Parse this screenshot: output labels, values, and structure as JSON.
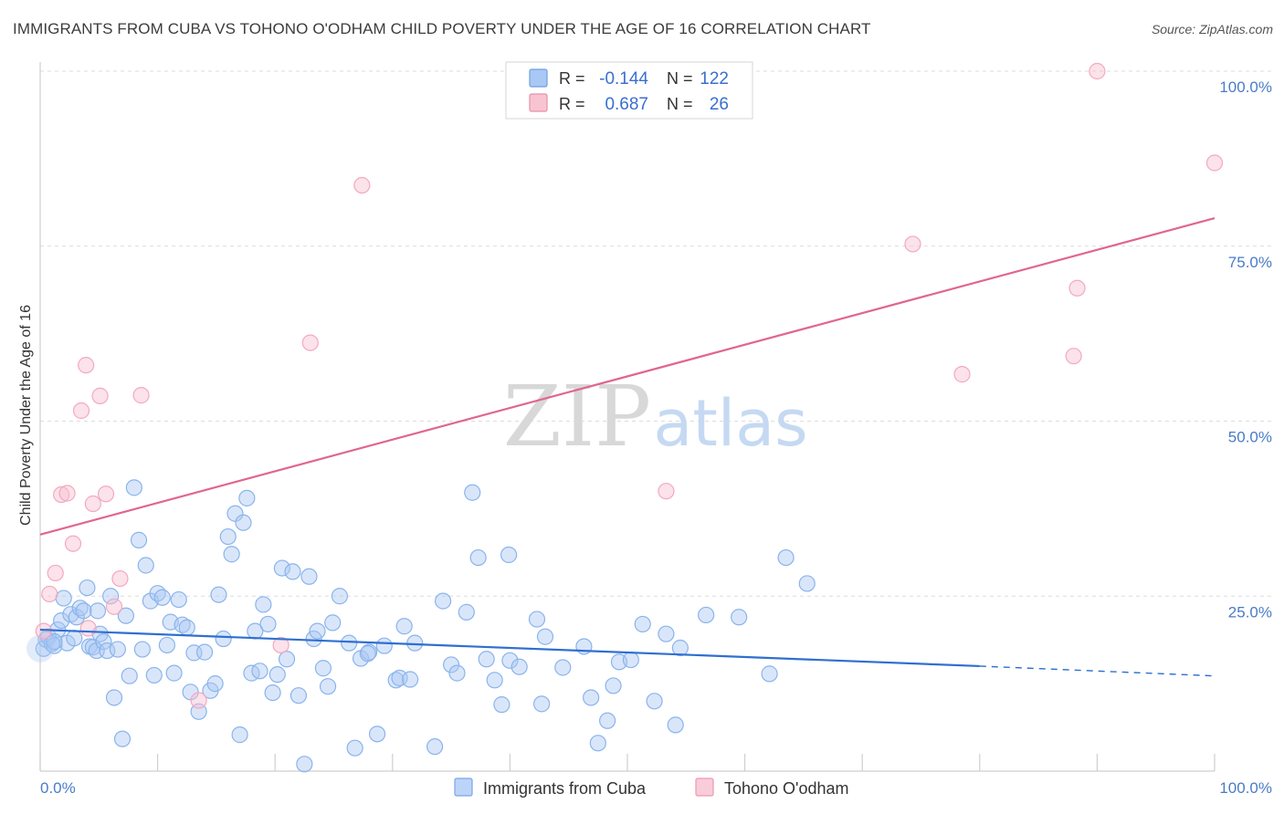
{
  "title": "IMMIGRANTS FROM CUBA VS TOHONO O'ODHAM CHILD POVERTY UNDER THE AGE OF 16 CORRELATION CHART",
  "source": "Source: ZipAtlas.com",
  "watermark": {
    "zip": "ZIP",
    "atlas": "atlas"
  },
  "legend_box": [
    {
      "r_label": "R =",
      "r_value": "-0.144",
      "n_label": "N =",
      "n_value": "122",
      "color": "#a9c8f5",
      "stroke": "#6f9fe0"
    },
    {
      "r_label": "R =",
      "r_value": "0.687",
      "n_label": "N =",
      "n_value": "26",
      "color": "#f8c4d2",
      "stroke": "#e890ab"
    }
  ],
  "bottom_legend": [
    {
      "label": "Immigrants from Cuba",
      "color": "#bcd4f7",
      "stroke": "#7aa6e6"
    },
    {
      "label": "Tohono O'odham",
      "color": "#f9ccd9",
      "stroke": "#ec9ab3"
    }
  ],
  "chart_data": {
    "type": "scatter",
    "title": "IMMIGRANTS FROM CUBA VS TOHONO O'ODHAM CHILD POVERTY UNDER THE AGE OF 16 CORRELATION CHART",
    "xlabel": "",
    "ylabel": "Child Poverty Under the Age of 16",
    "xlim": [
      0,
      100
    ],
    "ylim": [
      0,
      100
    ],
    "x_tick_labels": [
      "0.0%",
      "100.0%"
    ],
    "y_tick_labels": [
      "25.0%",
      "50.0%",
      "75.0%",
      "100.0%"
    ],
    "y_ticks": [
      25,
      50,
      75,
      100
    ],
    "grid": true,
    "series": [
      {
        "name": "Immigrants from Cuba",
        "color": "#8ab4ec",
        "trend": {
          "x0": 0,
          "y0": 20.2,
          "x1": 80,
          "y1": 15.0,
          "dash_to_x": 100,
          "dash_to_y": 13.6,
          "color": "#2f6fd0"
        },
        "points": [
          [
            0.3,
            17.5
          ],
          [
            0.5,
            18.8
          ],
          [
            0.7,
            19.2
          ],
          [
            1.0,
            18.2
          ],
          [
            1.2,
            17.9
          ],
          [
            1.5,
            20.2
          ],
          [
            1.8,
            21.5
          ],
          [
            2.0,
            24.7
          ],
          [
            2.3,
            18.3
          ],
          [
            2.6,
            22.4
          ],
          [
            2.9,
            19.0
          ],
          [
            3.1,
            22.0
          ],
          [
            3.4,
            23.3
          ],
          [
            3.7,
            22.9
          ],
          [
            4.0,
            26.2
          ],
          [
            4.2,
            17.8
          ],
          [
            4.5,
            17.7
          ],
          [
            4.8,
            17.2
          ],
          [
            5.1,
            19.6
          ],
          [
            5.4,
            18.5
          ],
          [
            5.7,
            17.2
          ],
          [
            6.0,
            25.0
          ],
          [
            6.3,
            10.5
          ],
          [
            6.6,
            17.4
          ],
          [
            7.0,
            4.6
          ],
          [
            7.3,
            22.2
          ],
          [
            7.6,
            13.6
          ],
          [
            8.0,
            40.5
          ],
          [
            8.4,
            33.0
          ],
          [
            8.7,
            17.4
          ],
          [
            9.0,
            29.4
          ],
          [
            9.4,
            24.3
          ],
          [
            9.7,
            13.7
          ],
          [
            10.0,
            25.4
          ],
          [
            10.4,
            24.8
          ],
          [
            10.8,
            18.0
          ],
          [
            11.1,
            21.3
          ],
          [
            11.4,
            14.0
          ],
          [
            11.8,
            24.5
          ],
          [
            12.1,
            20.9
          ],
          [
            12.5,
            20.5
          ],
          [
            12.8,
            11.3
          ],
          [
            13.1,
            16.9
          ],
          [
            13.5,
            8.5
          ],
          [
            14.0,
            17.0
          ],
          [
            14.5,
            11.5
          ],
          [
            14.9,
            12.5
          ],
          [
            15.2,
            25.2
          ],
          [
            15.6,
            18.9
          ],
          [
            16.0,
            33.5
          ],
          [
            16.3,
            31.0
          ],
          [
            16.6,
            36.8
          ],
          [
            17.0,
            5.2
          ],
          [
            17.3,
            35.5
          ],
          [
            17.6,
            39.0
          ],
          [
            18.0,
            14.0
          ],
          [
            18.3,
            20.0
          ],
          [
            18.7,
            14.3
          ],
          [
            19.0,
            23.8
          ],
          [
            19.4,
            21.0
          ],
          [
            19.8,
            11.2
          ],
          [
            20.2,
            13.8
          ],
          [
            20.6,
            29.0
          ],
          [
            21.0,
            16.0
          ],
          [
            21.5,
            28.5
          ],
          [
            22.0,
            10.8
          ],
          [
            22.5,
            1.0
          ],
          [
            22.9,
            27.8
          ],
          [
            23.3,
            18.9
          ],
          [
            23.6,
            20.0
          ],
          [
            24.1,
            14.7
          ],
          [
            24.5,
            12.1
          ],
          [
            24.9,
            21.2
          ],
          [
            25.5,
            25.0
          ],
          [
            26.3,
            18.3
          ],
          [
            26.8,
            3.3
          ],
          [
            27.3,
            16.1
          ],
          [
            28.0,
            17.0
          ],
          [
            28.7,
            5.3
          ],
          [
            29.3,
            17.9
          ],
          [
            30.3,
            13.0
          ],
          [
            30.6,
            13.3
          ],
          [
            31.0,
            20.7
          ],
          [
            31.5,
            13.1
          ],
          [
            31.9,
            18.3
          ],
          [
            33.6,
            3.5
          ],
          [
            34.3,
            24.3
          ],
          [
            35.0,
            15.2
          ],
          [
            35.5,
            14.0
          ],
          [
            36.3,
            22.7
          ],
          [
            36.8,
            39.8
          ],
          [
            37.3,
            30.5
          ],
          [
            38.0,
            16.0
          ],
          [
            38.7,
            13.0
          ],
          [
            39.3,
            9.5
          ],
          [
            39.9,
            30.9
          ],
          [
            40.0,
            15.8
          ],
          [
            40.8,
            14.9
          ],
          [
            42.3,
            21.7
          ],
          [
            42.7,
            9.6
          ],
          [
            43.0,
            19.2
          ],
          [
            44.5,
            14.8
          ],
          [
            46.3,
            17.8
          ],
          [
            46.9,
            10.5
          ],
          [
            47.5,
            4.0
          ],
          [
            48.3,
            7.2
          ],
          [
            48.8,
            12.2
          ],
          [
            49.3,
            15.6
          ],
          [
            50.3,
            15.9
          ],
          [
            51.3,
            21.0
          ],
          [
            52.3,
            10.0
          ],
          [
            53.3,
            19.6
          ],
          [
            54.1,
            6.6
          ],
          [
            54.5,
            17.6
          ],
          [
            56.7,
            22.3
          ],
          [
            59.5,
            22.0
          ],
          [
            62.1,
            13.9
          ],
          [
            63.5,
            30.5
          ],
          [
            65.3,
            26.8
          ],
          [
            1.2,
            18.5
          ],
          [
            4.9,
            22.9
          ],
          [
            27.9,
            16.8
          ]
        ]
      },
      {
        "name": "Tohono O'odham",
        "color": "#f3a9bf",
        "trend": {
          "x0": 0,
          "y0": 33.8,
          "x1": 100,
          "y1": 79.0,
          "color": "#e0668f"
        },
        "points": [
          [
            0.3,
            20.0
          ],
          [
            0.8,
            25.3
          ],
          [
            1.3,
            28.3
          ],
          [
            1.8,
            39.5
          ],
          [
            2.3,
            39.7
          ],
          [
            2.8,
            32.5
          ],
          [
            3.5,
            51.5
          ],
          [
            3.9,
            58.0
          ],
          [
            4.5,
            38.2
          ],
          [
            5.1,
            53.6
          ],
          [
            5.6,
            39.6
          ],
          [
            6.3,
            23.5
          ],
          [
            6.8,
            27.5
          ],
          [
            8.6,
            53.7
          ],
          [
            13.5,
            10.1
          ],
          [
            20.5,
            18.0
          ],
          [
            23.0,
            61.2
          ],
          [
            27.4,
            83.7
          ],
          [
            53.3,
            40.0
          ],
          [
            74.3,
            75.3
          ],
          [
            78.5,
            56.7
          ],
          [
            88.0,
            59.3
          ],
          [
            88.3,
            69.0
          ],
          [
            90.0,
            100.0
          ],
          [
            100.0,
            86.9
          ],
          [
            4.1,
            20.4
          ]
        ]
      }
    ]
  }
}
